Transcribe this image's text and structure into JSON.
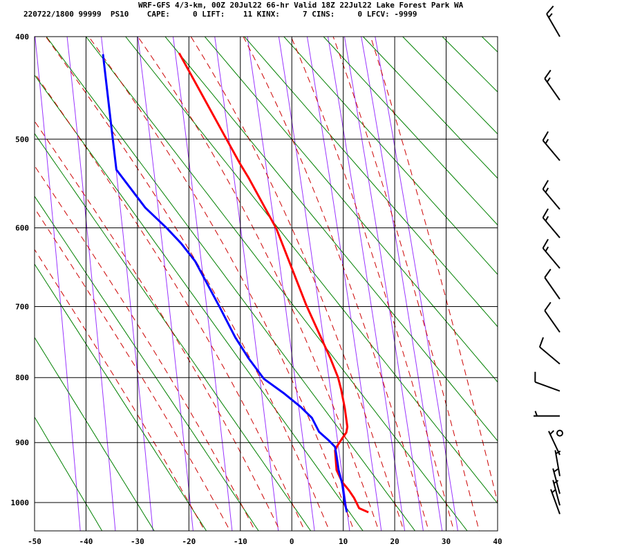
{
  "header": {
    "title": "WRF-GFS 4/3-km, 00Z 20Jul22 66-hr Valid 18Z 22Jul22 Lake Forest Park WA",
    "indices": "220722/1800 99999  PS10    CAPE:     0 LIFT:    11 KINX:     7 CINS:     0 LFCV: -9999"
  },
  "chart_data": {
    "type": "line",
    "diagram": "Stuve thermodynamic sounding",
    "xlim": [
      -50,
      40
    ],
    "ylim": [
      1050,
      400
    ],
    "x_ticks": [
      -50,
      -40,
      -30,
      -20,
      -10,
      0,
      10,
      20,
      30,
      40
    ],
    "y_ticks": [
      400,
      500,
      600,
      700,
      800,
      900,
      1000
    ],
    "grid": true,
    "colors": {
      "temperature": "#ff0000",
      "dewpoint": "#0000ff",
      "dry_adiabat": "#008000",
      "moist_adiabat": "#cc0000",
      "mixing_ratio": "#9933ff",
      "grid": "#000000"
    },
    "series": [
      {
        "key": "temperature",
        "points": [
          [
            1017,
            14.9
          ],
          [
            1010,
            13.1
          ],
          [
            992,
            12.1
          ],
          [
            979,
            11.1
          ],
          [
            965,
            9.8
          ],
          [
            945,
            8.7
          ],
          [
            913,
            8.4
          ],
          [
            906,
            8.8
          ],
          [
            892,
            9.9
          ],
          [
            884,
            10.6
          ],
          [
            875,
            10.8
          ],
          [
            846,
            10.3
          ],
          [
            818,
            9.6
          ],
          [
            800,
            9.0
          ],
          [
            772,
            7.5
          ],
          [
            698,
            2.8
          ],
          [
            601,
            -3.0
          ],
          [
            542,
            -8.4
          ],
          [
            527,
            -10.0
          ],
          [
            500,
            -12.7
          ],
          [
            415,
            -21.9
          ]
        ]
      },
      {
        "key": "dewpoint",
        "points": [
          [
            1017,
            10.7
          ],
          [
            1000,
            10.3
          ],
          [
            968,
            9.8
          ],
          [
            945,
            9.1
          ],
          [
            922,
            8.7
          ],
          [
            907,
            8.4
          ],
          [
            896,
            7.1
          ],
          [
            883,
            5.3
          ],
          [
            861,
            3.9
          ],
          [
            844,
            1.7
          ],
          [
            823,
            -1.6
          ],
          [
            802,
            -5.4
          ],
          [
            772,
            -8.4
          ],
          [
            742,
            -11.0
          ],
          [
            701,
            -14.0
          ],
          [
            641,
            -18.8
          ],
          [
            619,
            -21.5
          ],
          [
            601,
            -24.2
          ],
          [
            576,
            -28.5
          ],
          [
            533,
            -34.1
          ],
          [
            500,
            -34.8
          ],
          [
            416,
            -36.7
          ]
        ]
      }
    ],
    "dry_adiabats_theta_K": [
      233,
      243,
      253,
      263,
      273,
      283,
      293,
      303,
      313,
      323,
      333,
      343,
      353,
      363,
      373,
      383,
      393,
      403,
      413,
      423,
      433
    ],
    "moist_adiabats_T1000_C": [
      -20,
      -15,
      -10,
      -5,
      0,
      5,
      10,
      15,
      20,
      25,
      30,
      35,
      40
    ],
    "mixing_ratio_gkg": [
      0.1,
      0.2,
      0.4,
      0.8,
      1.5,
      3,
      5,
      8,
      12,
      16,
      20,
      25,
      30
    ],
    "wind_barbs": [
      {
        "p": 400,
        "dir": 330,
        "kt": 15
      },
      {
        "p": 460,
        "dir": 325,
        "kt": 15
      },
      {
        "p": 523,
        "dir": 320,
        "kt": 15
      },
      {
        "p": 578,
        "dir": 320,
        "kt": 15
      },
      {
        "p": 612,
        "dir": 320,
        "kt": 15
      },
      {
        "p": 650,
        "dir": 320,
        "kt": 15
      },
      {
        "p": 690,
        "dir": 325,
        "kt": 10
      },
      {
        "p": 735,
        "dir": 325,
        "kt": 10
      },
      {
        "p": 780,
        "dir": 310,
        "kt": 10
      },
      {
        "p": 820,
        "dir": 290,
        "kt": 10
      },
      {
        "p": 858,
        "dir": 270,
        "kt": 5
      },
      {
        "p": 885,
        "dir": 0,
        "kt": 0
      },
      {
        "p": 920,
        "dir": 335,
        "kt": 5
      },
      {
        "p": 955,
        "dir": 350,
        "kt": 5
      },
      {
        "p": 985,
        "dir": 345,
        "kt": 5
      },
      {
        "p": 1005,
        "dir": 345,
        "kt": 5
      },
      {
        "p": 1020,
        "dir": 340,
        "kt": 5
      }
    ]
  }
}
